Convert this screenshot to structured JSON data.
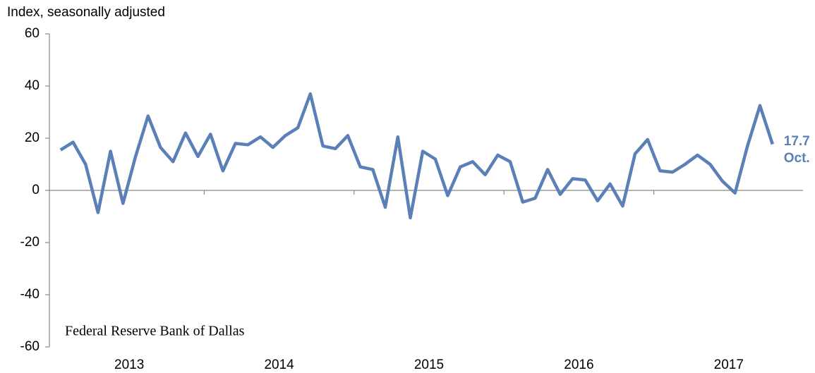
{
  "chart_data": {
    "type": "line",
    "y_axis_label": "Index, seasonally adjusted",
    "source": "Federal Reserve Bank of Dallas",
    "x_axis_labels": [
      "2013",
      "2014",
      "2015",
      "2016",
      "2017"
    ],
    "categories": [
      null,
      null,
      null,
      null,
      null,
      null,
      null,
      null,
      null,
      null,
      null,
      null,
      null,
      null,
      null,
      null,
      null,
      null,
      null,
      null,
      null,
      null,
      null,
      null,
      null,
      null,
      null,
      null,
      null,
      null,
      null,
      null,
      null,
      null,
      null,
      null,
      null,
      null,
      null,
      null,
      null,
      null,
      null,
      null,
      null,
      null,
      null,
      null,
      null,
      null,
      null,
      null,
      null,
      null,
      null,
      null,
      null,
      null
    ],
    "series": [
      {
        "name": null,
        "color": "#5b80b8",
        "values": [
          15.5,
          18.5,
          10,
          -8.5,
          15,
          -5,
          13,
          28.5,
          16.5,
          11,
          22,
          13,
          21.5,
          7.5,
          18,
          17.5,
          20.5,
          16.5,
          21,
          24,
          37,
          17,
          16,
          21,
          9,
          8,
          -6.5,
          20.5,
          -10.5,
          15,
          12,
          -2,
          9,
          11,
          6,
          13.5,
          11,
          -4.5,
          -3,
          8,
          -1.5,
          4.5,
          4,
          -4,
          2.5,
          -6,
          14,
          19.5,
          7.5,
          7,
          10,
          13.5,
          10,
          3.5,
          -1,
          17,
          32.5,
          17.7
        ]
      }
    ],
    "end_annotation": "Oct.",
    "ylim": [
      -60,
      60
    ],
    "yticks": [
      60,
      40,
      20,
      0,
      -20,
      -40,
      -60
    ]
  }
}
